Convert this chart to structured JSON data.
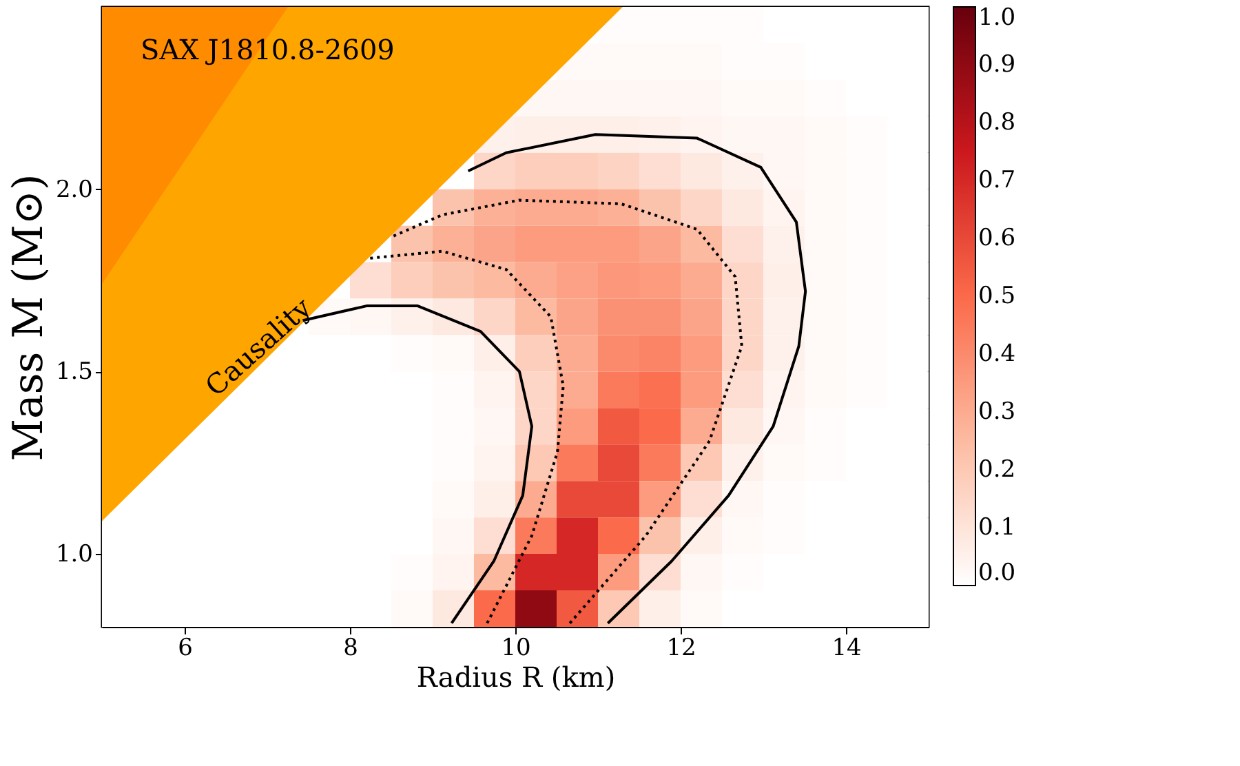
{
  "chart_data": {
    "type": "heatmap",
    "title": "SAX J1810.8-2609",
    "xlabel": "Radius R (km)",
    "ylabel": "Mass M (M⊙)",
    "x": [
      5.25,
      5.75,
      6.25,
      6.75,
      7.25,
      7.75,
      8.25,
      8.75,
      9.25,
      9.75,
      10.25,
      10.75,
      11.25,
      11.75,
      12.25,
      12.75,
      13.25,
      13.75,
      14.25,
      14.75
    ],
    "y": [
      2.45,
      2.35,
      2.25,
      2.15,
      2.05,
      1.95,
      1.85,
      1.75,
      1.65,
      1.55,
      1.45,
      1.35,
      1.25,
      1.15,
      1.05,
      0.95,
      0.85
    ],
    "cells": [
      [
        null,
        null,
        null,
        null,
        null,
        null,
        null,
        null,
        null,
        null,
        null,
        null,
        0.01,
        0.01,
        0.01,
        0.01,
        0,
        0,
        0,
        0
      ],
      [
        null,
        null,
        null,
        null,
        null,
        null,
        null,
        null,
        null,
        null,
        null,
        0.02,
        0.02,
        0.02,
        0.02,
        0.01,
        0.01,
        0,
        0,
        0
      ],
      [
        null,
        null,
        null,
        null,
        null,
        null,
        null,
        null,
        null,
        null,
        0.03,
        0.03,
        0.03,
        0.03,
        0.03,
        0.02,
        0.02,
        0.01,
        0,
        0
      ],
      [
        null,
        null,
        null,
        null,
        null,
        null,
        null,
        null,
        null,
        0.05,
        0.06,
        0.06,
        0.06,
        0.05,
        0.04,
        0.03,
        0.03,
        0.02,
        0.01,
        0
      ],
      [
        null,
        null,
        null,
        null,
        null,
        null,
        null,
        null,
        null,
        0.15,
        0.18,
        0.18,
        0.16,
        0.12,
        0.08,
        0.05,
        0.03,
        0.02,
        0.01,
        0
      ],
      [
        null,
        null,
        null,
        null,
        null,
        null,
        null,
        null,
        0.22,
        0.28,
        0.3,
        0.3,
        0.28,
        0.22,
        0.15,
        0.08,
        0.04,
        0.02,
        0.01,
        0
      ],
      [
        null,
        null,
        null,
        null,
        null,
        null,
        null,
        0.22,
        0.28,
        0.32,
        0.35,
        0.35,
        0.35,
        0.32,
        0.25,
        0.12,
        0.05,
        0.02,
        0.01,
        0
      ],
      [
        null,
        null,
        null,
        null,
        null,
        null,
        0.12,
        0.18,
        0.22,
        0.25,
        0.3,
        0.33,
        0.36,
        0.35,
        0.3,
        0.15,
        0.06,
        0.02,
        0.01,
        0
      ],
      [
        null,
        null,
        null,
        null,
        null,
        0.02,
        0.03,
        0.05,
        0.08,
        0.15,
        0.25,
        0.32,
        0.38,
        0.38,
        0.32,
        0.15,
        0.05,
        0.02,
        0.01,
        0
      ],
      [
        null,
        null,
        null,
        null,
        0,
        0,
        0,
        0.01,
        0.02,
        0.06,
        0.18,
        0.3,
        0.4,
        0.42,
        0.35,
        0.15,
        0.05,
        0.02,
        0.01,
        0
      ],
      [
        null,
        null,
        null,
        0,
        0,
        0,
        0,
        0,
        0.01,
        0.04,
        0.15,
        0.3,
        0.45,
        0.48,
        0.35,
        0.12,
        0.04,
        0.02,
        0.01,
        0
      ],
      [
        null,
        null,
        0,
        0,
        0,
        0,
        0,
        0,
        0.01,
        0.03,
        0.15,
        0.35,
        0.55,
        0.5,
        0.3,
        0.08,
        0.03,
        0.01,
        0,
        0
      ],
      [
        null,
        0,
        0,
        0,
        0,
        0,
        0,
        0,
        0.01,
        0.04,
        0.2,
        0.45,
        0.6,
        0.45,
        0.2,
        0.05,
        0.02,
        0.01,
        0,
        0
      ],
      [
        null,
        0,
        0,
        0,
        0,
        0,
        0,
        0,
        0.02,
        0.06,
        0.3,
        0.6,
        0.6,
        0.35,
        0.12,
        0.03,
        0.01,
        0,
        0,
        0
      ],
      [
        0,
        0,
        0,
        0,
        0,
        0,
        0,
        0,
        0.03,
        0.12,
        0.45,
        0.7,
        0.5,
        0.22,
        0.06,
        0.02,
        0.01,
        0,
        0,
        0
      ],
      [
        0,
        0,
        0,
        0,
        0,
        0,
        0,
        0.01,
        0.04,
        0.25,
        0.7,
        0.7,
        0.35,
        0.12,
        0.03,
        0.01,
        0,
        0,
        0,
        0
      ],
      [
        0,
        0,
        0,
        0,
        0,
        0,
        0,
        0.02,
        0.08,
        0.5,
        0.9,
        0.55,
        0.2,
        0.06,
        0.02,
        0,
        0,
        0,
        0,
        0
      ]
    ],
    "clim": [
      0,
      1
    ],
    "cticks": [
      {
        "value": 0,
        "label": "0.0"
      },
      {
        "value": 0.1,
        "label": "0.1"
      },
      {
        "value": 0.2,
        "label": "0.2"
      },
      {
        "value": 0.3,
        "label": "0.3"
      },
      {
        "value": 0.4,
        "label": "0.4"
      },
      {
        "value": 0.5,
        "label": "0.5"
      },
      {
        "value": 0.6,
        "label": "0.6"
      },
      {
        "value": 0.7,
        "label": "0.7"
      },
      {
        "value": 0.8,
        "label": "0.8"
      },
      {
        "value": 0.9,
        "label": "0.9"
      },
      {
        "value": 1,
        "label": "1.0"
      }
    ],
    "series": [
      {
        "type": "area",
        "color": "#ffa500",
        "x": [
          5,
          11.3
        ],
        "values": [
          1.09,
          2.5
        ]
      },
      {
        "type": "area",
        "color": "#ff8c00",
        "x": [
          5,
          7.25
        ],
        "values": [
          1.74,
          2.5
        ]
      },
      {
        "type": "line",
        "color": "#000000",
        "line_style": "solid",
        "x": [
          9.23,
          9.74,
          10.09,
          10.2,
          10.05,
          9.58,
          8.82,
          8.2,
          7.43
        ],
        "values": [
          0.81,
          0.98,
          1.16,
          1.35,
          1.5,
          1.61,
          1.68,
          1.68,
          1.64
        ]
      },
      {
        "type": "line",
        "color": "#000000",
        "line_style": "solid",
        "x": [
          11.12,
          11.89,
          12.58,
          13.12,
          13.43,
          13.51,
          13.4,
          12.97,
          12.2,
          10.97,
          9.89,
          9.43
        ],
        "values": [
          0.81,
          0.98,
          1.16,
          1.35,
          1.57,
          1.72,
          1.91,
          2.06,
          2.14,
          2.15,
          2.1,
          2.05
        ]
      },
      {
        "type": "line",
        "color": "#000000",
        "line_style": "dotted",
        "x": [
          9.66,
          10.2,
          10.51,
          10.58,
          10.43,
          9.89,
          9.12,
          8.2
        ],
        "values": [
          0.81,
          1.05,
          1.28,
          1.46,
          1.65,
          1.78,
          1.83,
          1.81
        ]
      },
      {
        "type": "line",
        "color": "#000000",
        "line_style": "dotted",
        "x": [
          10.66,
          11.58,
          12.35,
          12.74,
          12.66,
          12.2,
          11.28,
          10.05,
          9.12,
          8.51
        ],
        "values": [
          0.81,
          1.05,
          1.31,
          1.57,
          1.76,
          1.89,
          1.96,
          1.97,
          1.93,
          1.87
        ]
      }
    ],
    "annotations": [
      "Causality"
    ],
    "xlim": [
      5,
      15
    ],
    "ylim": [
      0.8,
      2.5
    ],
    "xticks": [
      6,
      8,
      10,
      12,
      14
    ],
    "yticks": [
      {
        "value": 1,
        "label": "1.0"
      },
      1.5,
      {
        "value": 2,
        "label": "2.0"
      }
    ],
    "grid": false
  }
}
